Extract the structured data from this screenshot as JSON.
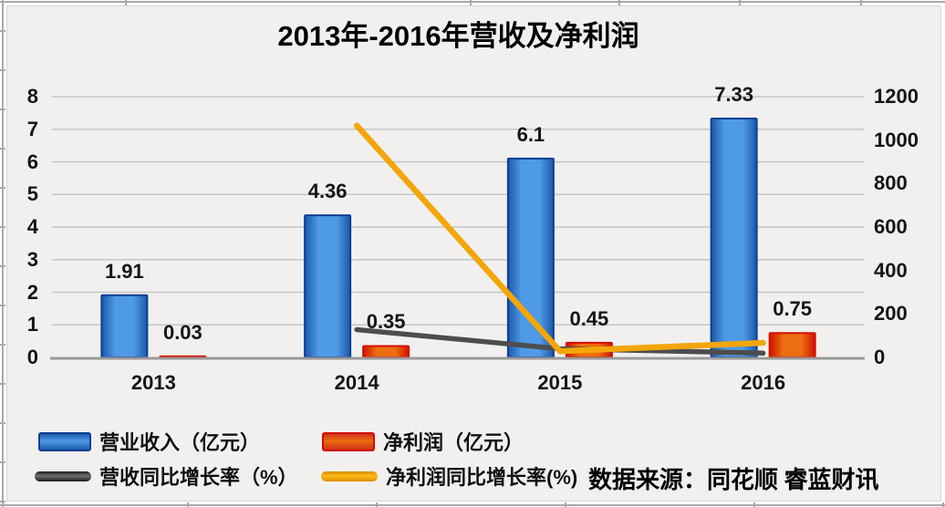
{
  "title": "2013年-2016年营收及净利润",
  "source_note": "数据来源：同花顺 睿蓝财讯",
  "colors": {
    "revenue_bar": "#3f8cdd",
    "revenue_bar_border": "#0e3f92",
    "profit_bar": "#e85c0e",
    "profit_bar_border": "#d40f00",
    "revenue_growth_line": "#4d4d4d",
    "profit_growth_line": "#f3a60b",
    "panel_background": "#f1f0ef",
    "gridline": "#c6c6c6",
    "axis_line": "#9a9a9a"
  },
  "chart_data": {
    "type": "bar",
    "subtype": "combo-bar-line-dual-axis",
    "categories": [
      "2013",
      "2014",
      "2015",
      "2016"
    ],
    "series": [
      {
        "name": "营业收入（亿元）",
        "type": "bar",
        "axis": "left",
        "color": "#3f8cdd",
        "values": [
          1.91,
          4.36,
          6.1,
          7.33
        ],
        "data_labels": [
          "1.91",
          "4.36",
          "6.1",
          "7.33"
        ]
      },
      {
        "name": "净利润（亿元）",
        "type": "bar",
        "axis": "left",
        "color": "#e85c0e",
        "values": [
          0.03,
          0.35,
          0.45,
          0.75
        ],
        "data_labels": [
          "0.03",
          "0.35",
          "0.45",
          "0.75"
        ]
      },
      {
        "name": "营收同比增长率（%）",
        "type": "line",
        "axis": "right",
        "color": "#4d4d4d",
        "values": [
          null,
          128,
          40,
          20
        ]
      },
      {
        "name": "净利润同比增长率(%)",
        "type": "line",
        "axis": "right",
        "color": "#f3a60b",
        "values": [
          null,
          1067,
          29,
          67
        ]
      }
    ],
    "left_axis": {
      "min": 0,
      "max": 8,
      "step": 1,
      "ticks": [
        "0",
        "1",
        "2",
        "3",
        "4",
        "5",
        "6",
        "7",
        "8"
      ]
    },
    "right_axis": {
      "min": 0,
      "max": 1200,
      "step": 200,
      "ticks": [
        "0",
        "200",
        "400",
        "600",
        "800",
        "1000",
        "1200"
      ]
    },
    "grid": true,
    "legend_position": "bottom-left",
    "title": "2013年-2016年营收及净利润"
  },
  "legend": {
    "items": [
      {
        "label": "营业收入（亿元）"
      },
      {
        "label": "净利润（亿元）"
      },
      {
        "label": "营收同比增长率（%）"
      },
      {
        "label": "净利润同比增长率(%)"
      }
    ]
  }
}
